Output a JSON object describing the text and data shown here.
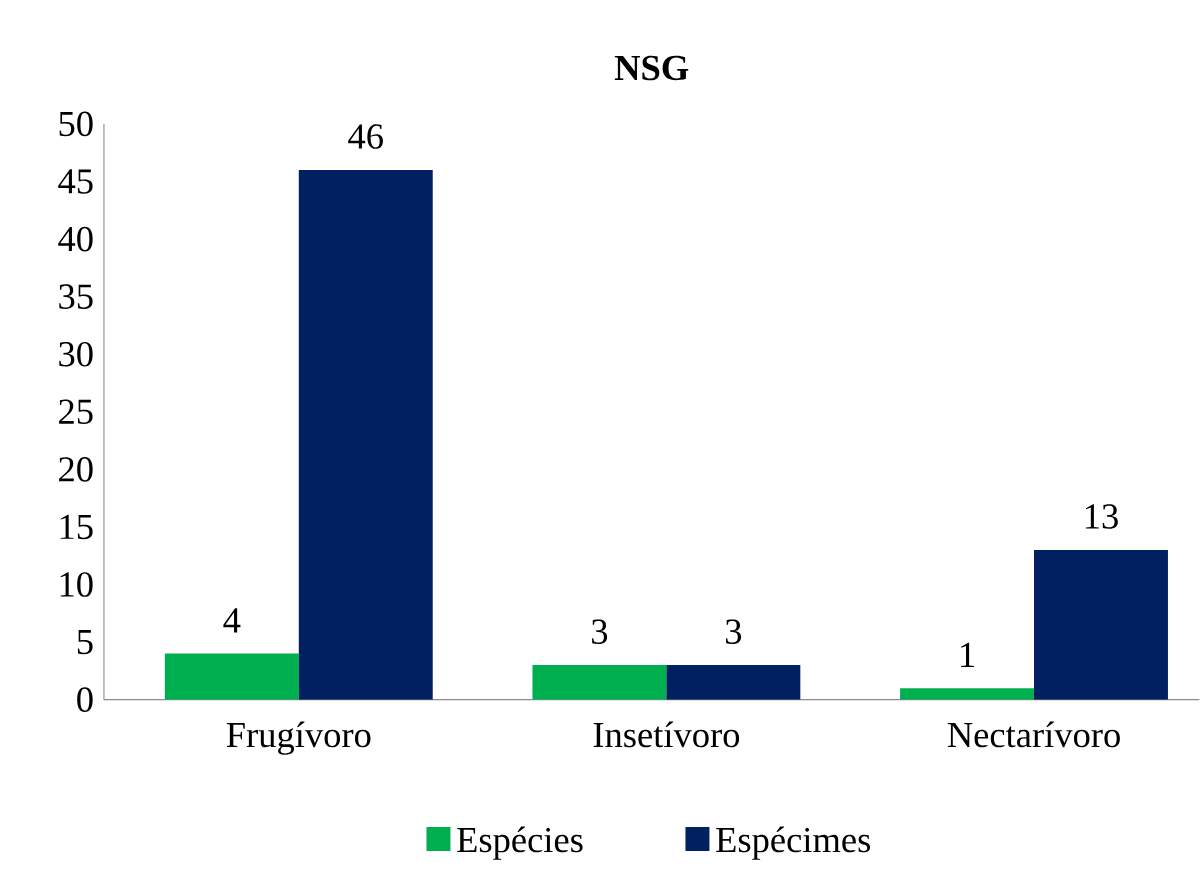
{
  "chart_data": {
    "type": "bar",
    "title": "**NSG**",
    "categories": [
      "Frugívoro",
      "Insetívoro",
      "Nectarívoro"
    ],
    "series": [
      {
        "name": "Espécies",
        "color": "#00b050",
        "values": [
          4,
          3,
          1
        ]
      },
      {
        "name": "Espécimes",
        "color": "#002060",
        "values": [
          46,
          3,
          13
        ]
      }
    ],
    "ylim": [
      0,
      50
    ],
    "yticks": [
      0,
      5,
      10,
      15,
      20,
      25,
      30,
      35,
      40,
      45,
      50
    ],
    "data_labels": true,
    "legend": "bottom",
    "grid": false
  }
}
